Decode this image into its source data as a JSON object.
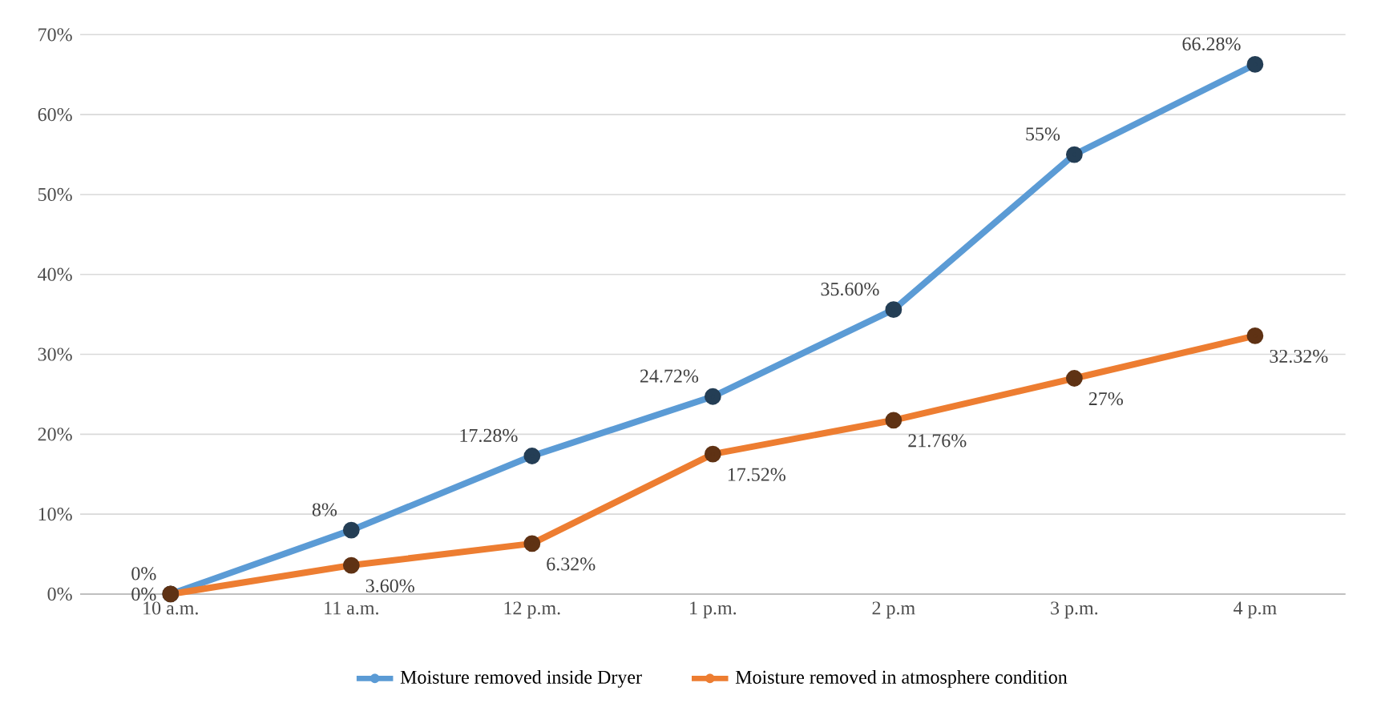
{
  "chart_data": {
    "type": "line",
    "categories": [
      "10 a.m.",
      "11 a.m.",
      "12 p.m.",
      "1 p.m.",
      "2 p.m",
      "3 p.m.",
      "4 p.m"
    ],
    "series": [
      {
        "name": "Moisture removed inside Dryer",
        "color": "#5b9bd5",
        "values": [
          0,
          8,
          17.28,
          24.72,
          35.6,
          55,
          66.28
        ],
        "value_labels": [
          "0%",
          "8%",
          "17.28%",
          "24.72%",
          "35.60%",
          "55%",
          "66.28%"
        ]
      },
      {
        "name": "Moisture removed in atmosphere condition",
        "color": "#ed7d31",
        "values": [
          0,
          3.6,
          6.32,
          17.52,
          21.76,
          27,
          32.32
        ],
        "value_labels": [
          "0%",
          "3.60%",
          "6.32%",
          "17.52%",
          "21.76%",
          "27%",
          "32.32%"
        ]
      }
    ],
    "ylim": [
      0,
      70
    ],
    "yticks": [
      {
        "value": 0,
        "label": "0%"
      },
      {
        "value": 10,
        "label": "10%"
      },
      {
        "value": 20,
        "label": "20%"
      },
      {
        "value": 30,
        "label": "30%"
      },
      {
        "value": 40,
        "label": "40%"
      },
      {
        "value": 50,
        "label": "50%"
      },
      {
        "value": 60,
        "label": "60%"
      },
      {
        "value": 70,
        "label": "70%"
      }
    ],
    "grid": "y",
    "legend": "bottom",
    "marker": "circle",
    "line_style": "solid"
  }
}
